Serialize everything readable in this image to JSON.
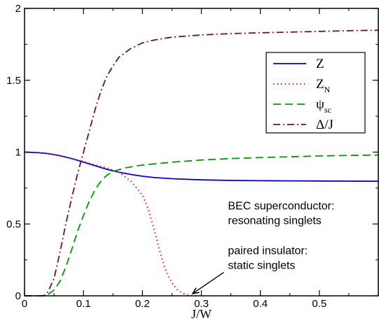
{
  "chart_data": {
    "type": "line",
    "xlabel": "J/W",
    "ylabel": "",
    "xlim": [
      0,
      0.6
    ],
    "ylim": [
      0,
      2
    ],
    "xticks": [
      0,
      0.1,
      0.2,
      0.3,
      0.4,
      0.5
    ],
    "yticks": [
      0,
      0.5,
      1,
      1.5,
      2
    ],
    "xtick_labels": [
      "0",
      "0.1",
      "0.2",
      "0.3",
      "0.4",
      "0.5"
    ],
    "ytick_labels": [
      "0",
      "0.5",
      "1",
      "1.5",
      "2"
    ],
    "grid": false,
    "legend_position": "top-right",
    "series": [
      {
        "name": "Z",
        "sub": "",
        "color": "#0000cc",
        "dash": "solid",
        "x": [
          0,
          0.02,
          0.04,
          0.06,
          0.08,
          0.1,
          0.12,
          0.14,
          0.16,
          0.18,
          0.2,
          0.22,
          0.25,
          0.3,
          0.35,
          0.4,
          0.45,
          0.5,
          0.55,
          0.6
        ],
        "y": [
          1.0,
          0.997,
          0.99,
          0.975,
          0.955,
          0.93,
          0.905,
          0.88,
          0.86,
          0.845,
          0.832,
          0.823,
          0.815,
          0.807,
          0.803,
          0.801,
          0.8,
          0.799,
          0.798,
          0.797
        ]
      },
      {
        "name": "Z",
        "sub": "N",
        "color": "#ff0000",
        "dash": "dotted",
        "x": [
          0,
          0.02,
          0.04,
          0.06,
          0.08,
          0.1,
          0.12,
          0.14,
          0.16,
          0.18,
          0.2,
          0.21,
          0.22,
          0.23,
          0.24,
          0.25,
          0.26,
          0.27,
          0.28,
          0.29
        ],
        "y": [
          1.0,
          0.997,
          0.99,
          0.975,
          0.955,
          0.935,
          0.91,
          0.89,
          0.86,
          0.8,
          0.7,
          0.6,
          0.46,
          0.3,
          0.17,
          0.09,
          0.04,
          0.015,
          0.003,
          0.0
        ]
      },
      {
        "name": "ψ",
        "sub": "sc",
        "color": "#009900",
        "dash": "dashed",
        "x": [
          0.0,
          0.03,
          0.04,
          0.05,
          0.06,
          0.07,
          0.08,
          0.09,
          0.1,
          0.11,
          0.12,
          0.13,
          0.14,
          0.15,
          0.17,
          0.2,
          0.25,
          0.3,
          0.35,
          0.4,
          0.45,
          0.5,
          0.55,
          0.6
        ],
        "y": [
          0.0,
          0.0,
          0.01,
          0.04,
          0.1,
          0.2,
          0.32,
          0.45,
          0.56,
          0.66,
          0.74,
          0.8,
          0.84,
          0.865,
          0.89,
          0.91,
          0.93,
          0.945,
          0.955,
          0.962,
          0.968,
          0.973,
          0.977,
          0.98
        ]
      },
      {
        "name": "Δ/J",
        "sub": "",
        "color": "#6b0f4a",
        "dash": "dashdot",
        "x": [
          0.0,
          0.03,
          0.035,
          0.04,
          0.05,
          0.06,
          0.07,
          0.08,
          0.09,
          0.1,
          0.11,
          0.12,
          0.13,
          0.14,
          0.15,
          0.16,
          0.18,
          0.2,
          0.22,
          0.25,
          0.3,
          0.35,
          0.4,
          0.45,
          0.5,
          0.55,
          0.6
        ],
        "y": [
          0.0,
          0.0,
          0.005,
          0.03,
          0.12,
          0.3,
          0.5,
          0.68,
          0.85,
          1.0,
          1.15,
          1.3,
          1.43,
          1.53,
          1.6,
          1.66,
          1.72,
          1.76,
          1.78,
          1.8,
          1.815,
          1.825,
          1.83,
          1.835,
          1.84,
          1.845,
          1.848
        ]
      }
    ],
    "annotations": [
      {
        "lines": [
          "BEC superconductor:",
          "resonating singlets"
        ],
        "x": 0.345,
        "y": 0.6
      },
      {
        "lines": [
          "paired insulator:",
          "static singlets"
        ],
        "x": 0.345,
        "y": 0.29,
        "arrow_to": [
          0.285,
          0.015
        ]
      }
    ]
  }
}
